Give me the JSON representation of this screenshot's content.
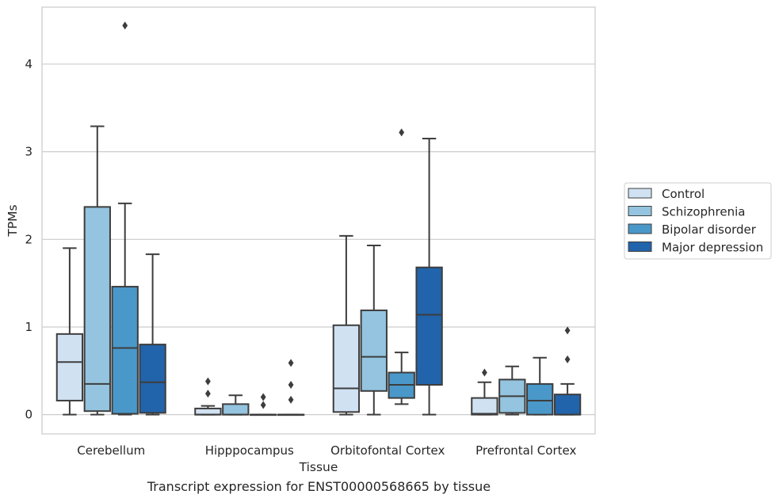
{
  "chart_data": {
    "type": "box",
    "xlabel": "Tissue",
    "ylabel": "TPMs",
    "ylim": [
      -0.22,
      4.65
    ],
    "yticks": [
      0,
      1,
      2,
      3,
      4
    ],
    "grid": "horizontal",
    "legend_position": "right",
    "categories": [
      "Cerebellum",
      "Hipppocampus",
      "Orbitofontal Cortex",
      "Prefrontal Cortex"
    ],
    "series": [
      {
        "name": "Control",
        "color": "#d0e1f2",
        "boxes": [
          {
            "whislo": 0.0,
            "q1": 0.16,
            "med": 0.6,
            "q3": 0.92,
            "whishi": 1.9,
            "fliers": []
          },
          {
            "whislo": 0.0,
            "q1": 0.0,
            "med": 0.0,
            "q3": 0.07,
            "whishi": 0.1,
            "fliers": [
              0.24,
              0.38
            ]
          },
          {
            "whislo": 0.0,
            "q1": 0.03,
            "med": 0.3,
            "q3": 1.02,
            "whishi": 2.04,
            "fliers": []
          },
          {
            "whislo": 0.0,
            "q1": 0.0,
            "med": 0.01,
            "q3": 0.19,
            "whishi": 0.37,
            "fliers": [
              0.48
            ]
          }
        ]
      },
      {
        "name": "Schizophrenia",
        "color": "#94c4df",
        "boxes": [
          {
            "whislo": 0.0,
            "q1": 0.04,
            "med": 0.35,
            "q3": 2.37,
            "whishi": 3.29,
            "fliers": []
          },
          {
            "whislo": 0.0,
            "q1": 0.0,
            "med": 0.0,
            "q3": 0.12,
            "whishi": 0.22,
            "fliers": []
          },
          {
            "whislo": 0.0,
            "q1": 0.27,
            "med": 0.66,
            "q3": 1.19,
            "whishi": 1.93,
            "fliers": []
          },
          {
            "whislo": 0.0,
            "q1": 0.02,
            "med": 0.21,
            "q3": 0.4,
            "whishi": 0.55,
            "fliers": []
          }
        ]
      },
      {
        "name": "Bipolar disorder",
        "color": "#4a98c9",
        "boxes": [
          {
            "whislo": 0.0,
            "q1": 0.01,
            "med": 0.76,
            "q3": 1.46,
            "whishi": 2.41,
            "fliers": [
              4.44
            ]
          },
          {
            "whislo": 0.0,
            "q1": 0.0,
            "med": 0.0,
            "q3": 0.0,
            "whishi": 0.0,
            "fliers": [
              0.11,
              0.2
            ]
          },
          {
            "whislo": 0.12,
            "q1": 0.19,
            "med": 0.34,
            "q3": 0.48,
            "whishi": 0.71,
            "fliers": [
              3.22
            ]
          },
          {
            "whislo": 0.0,
            "q1": 0.0,
            "med": 0.16,
            "q3": 0.35,
            "whishi": 0.65,
            "fliers": []
          }
        ]
      },
      {
        "name": "Major depression",
        "color": "#2164ab",
        "boxes": [
          {
            "whislo": 0.0,
            "q1": 0.02,
            "med": 0.37,
            "q3": 0.8,
            "whishi": 1.83,
            "fliers": []
          },
          {
            "whislo": 0.0,
            "q1": 0.0,
            "med": 0.0,
            "q3": 0.0,
            "whishi": 0.0,
            "fliers": [
              0.17,
              0.34,
              0.59
            ]
          },
          {
            "whislo": 0.0,
            "q1": 0.34,
            "med": 1.14,
            "q3": 1.68,
            "whishi": 3.15,
            "fliers": []
          },
          {
            "whislo": 0.0,
            "q1": 0.0,
            "med": 0.0,
            "q3": 0.23,
            "whishi": 0.35,
            "fliers": [
              0.63,
              0.96
            ]
          }
        ]
      }
    ]
  },
  "caption": "Transcript expression for ENST00000568665 by tissue"
}
